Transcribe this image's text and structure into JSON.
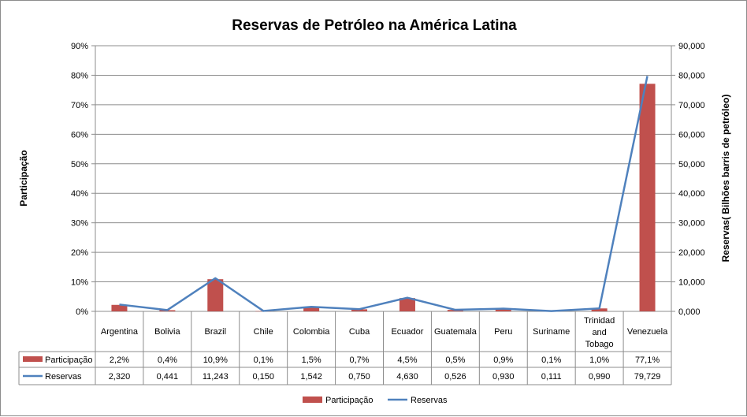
{
  "chart_data": {
    "type": "bar",
    "title": "Reservas de Petróleo na América Latina",
    "ylabel": "Participação",
    "y2label": "Reservas( Bilhões barris de petróleo)",
    "ylim": [
      0,
      90
    ],
    "y2lim": [
      0,
      90000
    ],
    "y_ticks": [
      "0%",
      "10%",
      "20%",
      "30%",
      "40%",
      "50%",
      "60%",
      "70%",
      "80%",
      "90%"
    ],
    "y2_ticks": [
      "0,000",
      "10,000",
      "20,000",
      "30,000",
      "40,000",
      "50,000",
      "60,000",
      "70,000",
      "80,000",
      "90,000"
    ],
    "categories": [
      "Argentina",
      "Bolivia",
      "Brazil",
      "Chile",
      "Colombia",
      "Cuba",
      "Ecuador",
      "Guatemala",
      "Peru",
      "Suriname",
      "Trinidad and Tobago",
      "Venezuela"
    ],
    "grid": true,
    "legend_position": "bottom",
    "series": [
      {
        "name": "Participação",
        "type": "bar",
        "axis": "left",
        "color": "#c0504d",
        "values": [
          2.2,
          0.4,
          10.9,
          0.1,
          1.5,
          0.7,
          4.5,
          0.5,
          0.9,
          0.1,
          1.0,
          77.1
        ],
        "labels": [
          "2,2%",
          "0,4%",
          "10,9%",
          "0,1%",
          "1,5%",
          "0,7%",
          "4,5%",
          "0,5%",
          "0,9%",
          "0,1%",
          "1,0%",
          "77,1%"
        ]
      },
      {
        "name": "Reservas",
        "type": "line",
        "axis": "right",
        "color": "#4f81bd",
        "values": [
          2320,
          441,
          11243,
          150,
          1542,
          750,
          4630,
          526,
          930,
          111,
          990,
          79729
        ],
        "labels": [
          "2,320",
          "0,441",
          "11,243",
          "0,150",
          "1,542",
          "0,750",
          "4,630",
          "0,526",
          "0,930",
          "0,111",
          "0,990",
          "79,729"
        ]
      }
    ]
  }
}
